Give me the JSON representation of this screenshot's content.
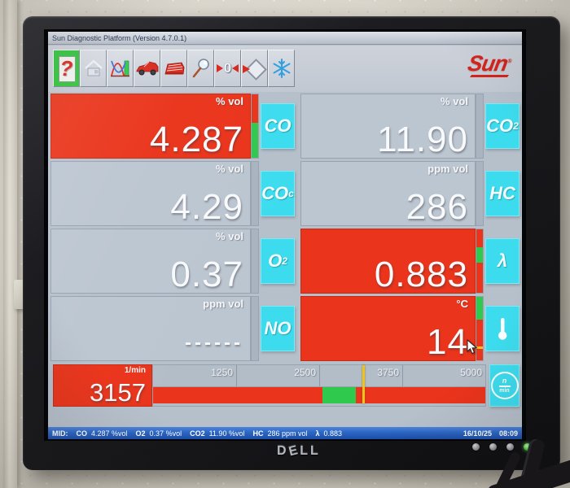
{
  "window": {
    "title": "Sun Diagnostic Platform (Version 4.7.0.1)"
  },
  "toolbar": {
    "buttons": [
      "help",
      "home",
      "graphs",
      "vehicle",
      "vehicle-data",
      "zoom",
      "zero-calibration",
      "exit",
      "freeze"
    ]
  },
  "brand": {
    "logo": "Sun",
    "registered": "®"
  },
  "colors": {
    "alarm_red": "#ea341b",
    "chip_cyan": "#3cdcee",
    "ok_green": "#2fc94e",
    "marker_yellow": "#edc41f",
    "status_blue": "#2b66c4",
    "panel_gray": "#b6c0cb"
  },
  "gauges": [
    {
      "name": "co",
      "unit": "% vol",
      "value": "4.287",
      "label": "CO",
      "sub": "",
      "alarm": true,
      "strip": [
        {
          "c": "#ea341b",
          "p": 45
        },
        {
          "c": "#2fc94e",
          "p": 55
        }
      ]
    },
    {
      "name": "co2",
      "unit": "% vol",
      "value": "11.90",
      "label": "CO",
      "sub": "2",
      "alarm": false,
      "strip": []
    },
    {
      "name": "co-corr",
      "unit": "% vol",
      "value": "4.29",
      "label": "CO",
      "sub": "c",
      "alarm": false,
      "strip": []
    },
    {
      "name": "hc",
      "unit": "ppm vol",
      "value": "286",
      "label": "HC",
      "sub": "",
      "alarm": false,
      "strip": []
    },
    {
      "name": "o2",
      "unit": "% vol",
      "value": "0.37",
      "label": "O",
      "sub": "2",
      "alarm": false,
      "strip": []
    },
    {
      "name": "lambda",
      "unit": "",
      "value": "0.883",
      "label": "λ",
      "sub": "",
      "alarm": true,
      "strip": [
        {
          "c": "#ea341b",
          "p": 28
        },
        {
          "c": "#2fc94e",
          "p": 24
        },
        {
          "c": "#ea341b",
          "p": 48
        }
      ]
    },
    {
      "name": "no",
      "unit": "ppm vol",
      "value": "------",
      "label": "NO",
      "sub": "",
      "alarm": false,
      "strip": []
    },
    {
      "name": "temp",
      "unit": "°C",
      "value": "14",
      "label": "",
      "sub": "",
      "alarm": true,
      "strip": [
        {
          "c": "#2fc94e",
          "p": 36
        },
        {
          "c": "#ea341b",
          "p": 42
        },
        {
          "c": "#edc41f",
          "p": 4
        },
        {
          "c": "#ea341b",
          "p": 18
        }
      ]
    }
  ],
  "rpm": {
    "unit": "1/min",
    "value": "3157",
    "ticks": [
      "1250",
      "2500",
      "3750",
      "5000"
    ],
    "max": 5000,
    "marker_style": "left:63.1%",
    "bar": [
      {
        "c": "#ea341b",
        "p": 51
      },
      {
        "c": "#2fc94e",
        "p": 10
      },
      {
        "c": "#ea341b",
        "p": 2
      },
      {
        "c": "#ea341b",
        "p": 37
      }
    ]
  },
  "status": {
    "prefix": "MID:",
    "items": [
      {
        "l": "CO",
        "v": "4.287 %vol"
      },
      {
        "l": "O2",
        "v": "0.37 %vol"
      },
      {
        "l": "CO2",
        "v": "11.90 %vol"
      },
      {
        "l": "HC",
        "v": "286 ppm vol"
      },
      {
        "l": "λ",
        "v": "0.883"
      }
    ],
    "date": "16/10/25",
    "time": "08:09"
  },
  "monitor": {
    "brand": "DELL"
  }
}
